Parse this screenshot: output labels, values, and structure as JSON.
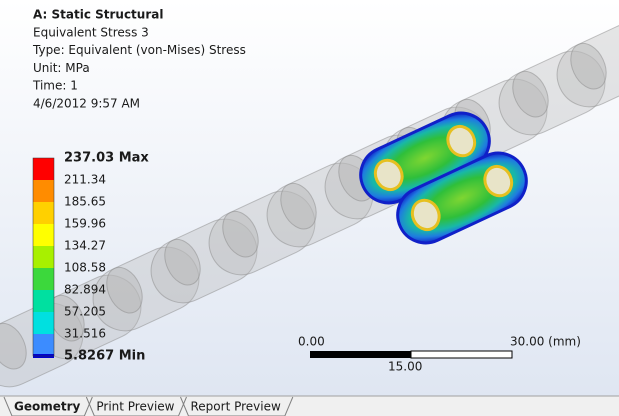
{
  "header": {
    "title": "A: Static Structural",
    "lines": [
      "Equivalent Stress 3",
      "Type: Equivalent (von-Mises) Stress",
      "Unit: MPa",
      "Time: 1",
      "4/6/2012 9:57 AM"
    ]
  },
  "legend": {
    "labels": [
      "237.03 Max",
      "211.34",
      "185.65",
      "159.96",
      "134.27",
      "108.58",
      "82.894",
      "57.205",
      "31.516",
      "5.8267 Min"
    ]
  },
  "scale_bar": {
    "left": "0.00",
    "right": "30.00 (mm)",
    "middle": "15.00"
  },
  "tabs": [
    "Geometry",
    "Print Preview",
    "Report Preview"
  ]
}
